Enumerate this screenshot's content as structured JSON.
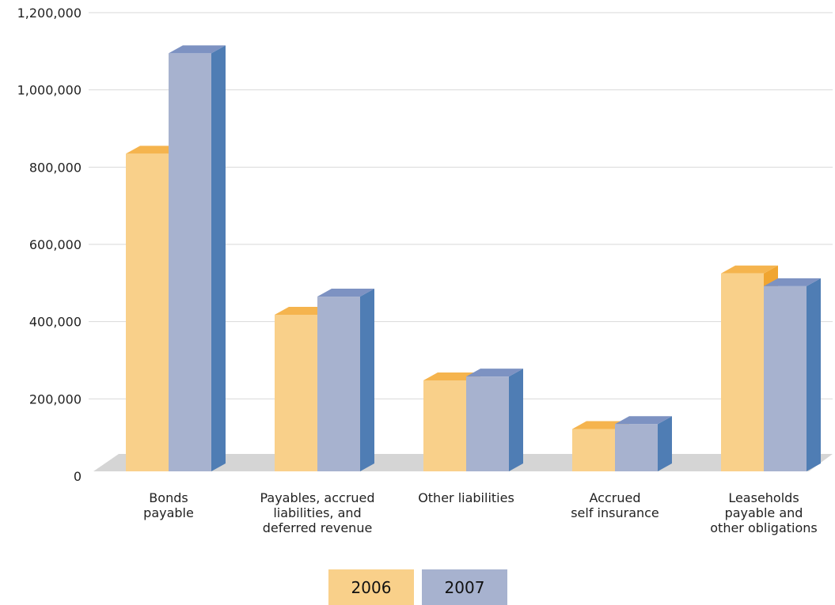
{
  "chart_data": {
    "type": "bar",
    "categories": [
      [
        "Bonds",
        "payable"
      ],
      [
        "Payables, accrued",
        "liabilities, and",
        "deferred revenue"
      ],
      [
        "Other liabilities"
      ],
      [
        "Accrued",
        "self insurance"
      ],
      [
        "Leaseholds",
        "payable and",
        "other obligations"
      ]
    ],
    "series": [
      {
        "name": "2006",
        "values": [
          845000,
          428000,
          258000,
          132000,
          535000
        ]
      },
      {
        "name": "2007",
        "values": [
          1105000,
          475000,
          268000,
          145000,
          502000
        ]
      }
    ],
    "ylim": [
      0,
      1200000
    ],
    "yticks": [
      0,
      200000,
      400000,
      600000,
      800000,
      1000000,
      1200000
    ],
    "ytick_labels": [
      "0",
      "200,000",
      "400,000",
      "600,000",
      "800,000",
      "1,000,000",
      "1,200,000"
    ],
    "grid": true,
    "legend_position": "bottom",
    "colors": {
      "s2006_front": "#f9d08a",
      "s2006_top": "#f5b44e",
      "s2006_side": "#f0a531",
      "s2007_front": "#a7b2cf",
      "s2007_top": "#7d92c2",
      "s2007_side": "#4f7db4",
      "floor": "#d5d5d5",
      "grid": "#d9d9d9"
    }
  }
}
